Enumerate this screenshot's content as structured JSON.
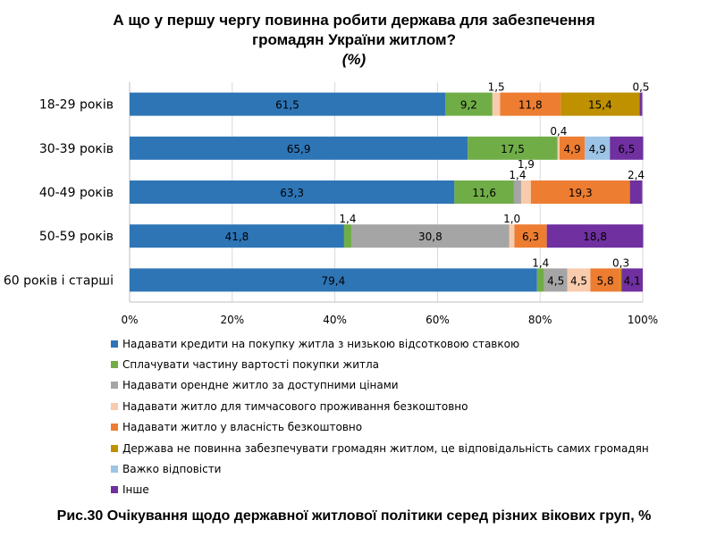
{
  "chart_data": {
    "type": "bar",
    "orientation": "horizontal",
    "stacked": "percent",
    "title_lines": [
      "А що у першу чергу повинна робити держава для забезпечення",
      "громадян України житлом?",
      "(%)"
    ],
    "categories": [
      "18-29 років",
      "30-39 років",
      "40-49 років",
      "50-59 років",
      "60 років і старші"
    ],
    "xlim": [
      0,
      100
    ],
    "xticks": [
      "0%",
      "20%",
      "40%",
      "60%",
      "80%",
      "100%"
    ],
    "grid": true,
    "legend_position": "bottom",
    "series": [
      {
        "name": "Надавати кредити на покупку житла з низькою відсотковою ставкою",
        "color": "#2E75B6",
        "values": [
          61.5,
          65.9,
          63.3,
          41.8,
          79.4
        ],
        "labels": [
          "61,5",
          "65,9",
          "63,3",
          "41,8",
          "79,4"
        ]
      },
      {
        "name": "Сплачувати частину вартості покупки житла",
        "color": "#70AD47",
        "values": [
          9.2,
          17.5,
          11.6,
          1.4,
          1.4
        ],
        "labels": [
          "9,2",
          "17,5",
          "11,6",
          "1,4",
          "1,4"
        ]
      },
      {
        "name": "Надавати орендне житло за доступними цінами",
        "color": "#A5A5A5",
        "values": [
          0,
          0,
          1.4,
          30.8,
          4.5
        ],
        "labels": [
          "",
          "",
          "1,4",
          "30,8",
          "4,5"
        ]
      },
      {
        "name": "Надавати житло для тимчасового проживання безкоштовно",
        "color": "#F8CBAD",
        "values": [
          1.5,
          0.4,
          1.9,
          1.0,
          4.5
        ],
        "labels": [
          "1,5",
          "0,4",
          "1,9",
          "1,0",
          "4,5"
        ]
      },
      {
        "name": "Надавати житло у власність безкоштовно",
        "color": "#ED7D31",
        "values": [
          11.8,
          4.9,
          19.3,
          6.3,
          5.8
        ],
        "labels": [
          "11,8",
          "4,9",
          "19,3",
          "6,3",
          "5,8"
        ]
      },
      {
        "name": "Держава не повинна забезпечувати громадян житлом, це відповідальність самих громадян",
        "color": "#BF9000",
        "values": [
          15.4,
          0,
          0,
          0,
          0.3
        ],
        "labels": [
          "15,4",
          "",
          "",
          "",
          "0,3"
        ]
      },
      {
        "name": "Важко відповісти",
        "color": "#9DC3E6",
        "values": [
          0,
          4.9,
          0,
          0,
          0
        ],
        "labels": [
          "",
          "4,9",
          "",
          "",
          ""
        ]
      },
      {
        "name": "Інше",
        "color": "#7030A0",
        "values": [
          0.5,
          6.5,
          2.4,
          18.8,
          4.1
        ],
        "labels": [
          "0,5",
          "6,5",
          "2,4",
          "18,8",
          "4,1"
        ]
      }
    ]
  },
  "caption": "Рис.30 Очікування щодо державної житлової політики серед різних вікових груп, %"
}
